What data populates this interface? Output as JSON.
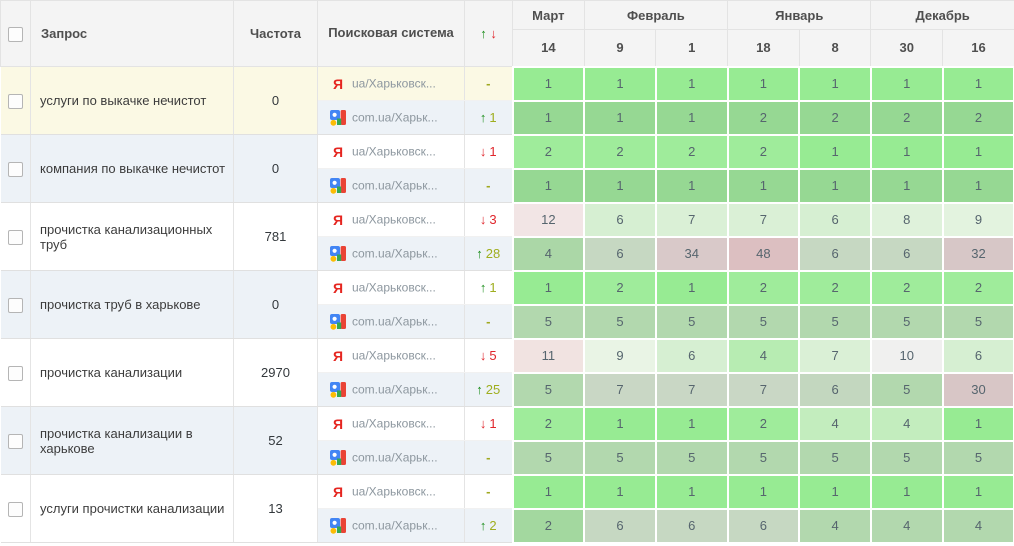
{
  "header": {
    "columns": {
      "query": "Запрос",
      "frequency": "Частота",
      "engine": "Поисковая система",
      "change_up": "↑",
      "change_down": "↓"
    },
    "months": [
      {
        "label": "Март",
        "span": 1
      },
      {
        "label": "Февраль",
        "span": 2
      },
      {
        "label": "Январь",
        "span": 2
      },
      {
        "label": "Декабрь",
        "span": 2
      }
    ],
    "days": [
      "14",
      "9",
      "1",
      "18",
      "8",
      "30",
      "16"
    ]
  },
  "colors": {
    "header_bg": "#f4f4f4",
    "highlight_yellow": "#fbf9e4",
    "zebra_blue": "#edf2f7",
    "white": "#ffffff",
    "up_arrow": "#1e8f1e",
    "up_number": "#9fae1e",
    "down": "#e0262c",
    "dash": "#9fa81e",
    "green_bright": "#97eb93",
    "green_muted": "#96d893"
  },
  "rows": [
    {
      "query": "услуги по выкачке нечистот",
      "frequency": "0",
      "bg": "#fbf9e4",
      "engines": [
        {
          "icon": "yandex-icon",
          "label": "ua/Харьковск...",
          "bg": "#fbf9e4",
          "change": {
            "dir": "flat",
            "value": "-"
          },
          "cells": [
            [
              "1",
              "#97eb93"
            ],
            [
              "1",
              "#97eb93"
            ],
            [
              "1",
              "#97eb93"
            ],
            [
              "1",
              "#97eb93"
            ],
            [
              "1",
              "#97eb93"
            ],
            [
              "1",
              "#97eb93"
            ],
            [
              "1",
              "#97eb93"
            ]
          ]
        },
        {
          "icon": "google-icon",
          "label": "com.ua/Харьк...",
          "bg": "#edf2f7",
          "change": {
            "dir": "up",
            "value": "1"
          },
          "cells": [
            [
              "1",
              "#96d893"
            ],
            [
              "1",
              "#96d893"
            ],
            [
              "1",
              "#96d893"
            ],
            [
              "2",
              "#96d893"
            ],
            [
              "2",
              "#96d893"
            ],
            [
              "2",
              "#96d893"
            ],
            [
              "2",
              "#96d893"
            ]
          ]
        }
      ]
    },
    {
      "query": "компания по выкачке нечистот",
      "frequency": "0",
      "bg": "#edf2f7",
      "engines": [
        {
          "icon": "yandex-icon",
          "label": "ua/Харьковск...",
          "bg": "#ffffff",
          "change": {
            "dir": "down",
            "value": "1"
          },
          "cells": [
            [
              "2",
              "#9fec9b"
            ],
            [
              "2",
              "#9fec9b"
            ],
            [
              "2",
              "#9fec9b"
            ],
            [
              "2",
              "#9fec9b"
            ],
            [
              "1",
              "#97eb93"
            ],
            [
              "1",
              "#97eb93"
            ],
            [
              "1",
              "#97eb93"
            ]
          ]
        },
        {
          "icon": "google-icon",
          "label": "com.ua/Харьк...",
          "bg": "#edf2f7",
          "change": {
            "dir": "flat",
            "value": "-"
          },
          "cells": [
            [
              "1",
              "#96d893"
            ],
            [
              "1",
              "#96d893"
            ],
            [
              "1",
              "#96d893"
            ],
            [
              "1",
              "#96d893"
            ],
            [
              "1",
              "#96d893"
            ],
            [
              "1",
              "#96d893"
            ],
            [
              "1",
              "#96d893"
            ]
          ]
        }
      ]
    },
    {
      "query": "прочистка канализационных труб",
      "frequency": "781",
      "bg": "#ffffff",
      "engines": [
        {
          "icon": "yandex-icon",
          "label": "ua/Харьковск...",
          "bg": "#ffffff",
          "change": {
            "dir": "down",
            "value": "3"
          },
          "cells": [
            [
              "12",
              "#f2e5e5"
            ],
            [
              "6",
              "#d6efd2"
            ],
            [
              "7",
              "#daf0d6"
            ],
            [
              "7",
              "#daf0d6"
            ],
            [
              "6",
              "#d6efd2"
            ],
            [
              "8",
              "#dff2db"
            ],
            [
              "9",
              "#e3f3df"
            ]
          ]
        },
        {
          "icon": "google-icon",
          "label": "com.ua/Харьк...",
          "bg": "#edf2f7",
          "change": {
            "dir": "up",
            "value": "28"
          },
          "cells": [
            [
              "4",
              "#abd7a7"
            ],
            [
              "6",
              "#c6d8c2"
            ],
            [
              "34",
              "#d9c9c9"
            ],
            [
              "48",
              "#dcbfc1"
            ],
            [
              "6",
              "#c6d8c2"
            ],
            [
              "6",
              "#c6d8c2"
            ],
            [
              "32",
              "#d7c7c7"
            ]
          ]
        }
      ]
    },
    {
      "query": "прочистка труб в харькове",
      "frequency": "0",
      "bg": "#edf2f7",
      "engines": [
        {
          "icon": "yandex-icon",
          "label": "ua/Харьковск...",
          "bg": "#ffffff",
          "change": {
            "dir": "up",
            "value": "1"
          },
          "cells": [
            [
              "1",
              "#97eb93"
            ],
            [
              "2",
              "#9fec9b"
            ],
            [
              "1",
              "#97eb93"
            ],
            [
              "2",
              "#9fec9b"
            ],
            [
              "2",
              "#9fec9b"
            ],
            [
              "2",
              "#9fec9b"
            ],
            [
              "2",
              "#9fec9b"
            ]
          ]
        },
        {
          "icon": "google-icon",
          "label": "com.ua/Харьк...",
          "bg": "#edf2f7",
          "change": {
            "dir": "flat",
            "value": "-"
          },
          "cells": [
            [
              "5",
              "#b2d8ae"
            ],
            [
              "5",
              "#b2d8ae"
            ],
            [
              "5",
              "#b2d8ae"
            ],
            [
              "5",
              "#b2d8ae"
            ],
            [
              "5",
              "#b2d8ae"
            ],
            [
              "5",
              "#b2d8ae"
            ],
            [
              "5",
              "#b2d8ae"
            ]
          ]
        }
      ]
    },
    {
      "query": "прочистка канализации",
      "frequency": "2970",
      "bg": "#ffffff",
      "engines": [
        {
          "icon": "yandex-icon",
          "label": "ua/Харьковск...",
          "bg": "#ffffff",
          "change": {
            "dir": "down",
            "value": "5"
          },
          "cells": [
            [
              "11",
              "#f1e3e1"
            ],
            [
              "9",
              "#e9f4e5"
            ],
            [
              "6",
              "#d6efd2"
            ],
            [
              "4",
              "#b7ecb2"
            ],
            [
              "7",
              "#daf0d6"
            ],
            [
              "10",
              "#f0f0ef"
            ],
            [
              "6",
              "#d6efd2"
            ]
          ]
        },
        {
          "icon": "google-icon",
          "label": "com.ua/Харьк...",
          "bg": "#edf2f7",
          "change": {
            "dir": "up",
            "value": "25"
          },
          "cells": [
            [
              "5",
              "#b2d8ae"
            ],
            [
              "7",
              "#c9d7c5"
            ],
            [
              "7",
              "#c9d7c5"
            ],
            [
              "7",
              "#c9d7c5"
            ],
            [
              "6",
              "#c3d7bf"
            ],
            [
              "5",
              "#b2d8ae"
            ],
            [
              "30",
              "#d8c6c6"
            ]
          ]
        }
      ]
    },
    {
      "query": "прочистка канализации в харькове",
      "frequency": "52",
      "bg": "#edf2f7",
      "engines": [
        {
          "icon": "yandex-icon",
          "label": "ua/Харьковск...",
          "bg": "#ffffff",
          "change": {
            "dir": "down",
            "value": "1"
          },
          "cells": [
            [
              "2",
              "#9fec9b"
            ],
            [
              "1",
              "#97eb93"
            ],
            [
              "1",
              "#97eb93"
            ],
            [
              "2",
              "#9fec9b"
            ],
            [
              "4",
              "#c3edbe"
            ],
            [
              "4",
              "#c3edbe"
            ],
            [
              "1",
              "#97eb93"
            ]
          ]
        },
        {
          "icon": "google-icon",
          "label": "com.ua/Харьк...",
          "bg": "#edf2f7",
          "change": {
            "dir": "flat",
            "value": "-"
          },
          "cells": [
            [
              "5",
              "#b2d8ae"
            ],
            [
              "5",
              "#b2d8ae"
            ],
            [
              "5",
              "#b2d8ae"
            ],
            [
              "5",
              "#b2d8ae"
            ],
            [
              "5",
              "#b2d8ae"
            ],
            [
              "5",
              "#b2d8ae"
            ],
            [
              "5",
              "#b2d8ae"
            ]
          ]
        }
      ]
    },
    {
      "query": "услуги прочистки канализации",
      "frequency": "13",
      "bg": "#ffffff",
      "engines": [
        {
          "icon": "yandex-icon",
          "label": "ua/Харьковск...",
          "bg": "#ffffff",
          "change": {
            "dir": "flat",
            "value": "-"
          },
          "cells": [
            [
              "1",
              "#97eb93"
            ],
            [
              "1",
              "#97eb93"
            ],
            [
              "1",
              "#97eb93"
            ],
            [
              "1",
              "#97eb93"
            ],
            [
              "1",
              "#97eb93"
            ],
            [
              "1",
              "#97eb93"
            ],
            [
              "1",
              "#97eb93"
            ]
          ]
        },
        {
          "icon": "google-icon",
          "label": "com.ua/Харьк...",
          "bg": "#edf2f7",
          "change": {
            "dir": "up",
            "value": "2"
          },
          "cells": [
            [
              "2",
              "#a3d89f"
            ],
            [
              "6",
              "#c6d8c2"
            ],
            [
              "6",
              "#c6d8c2"
            ],
            [
              "6",
              "#c6d8c2"
            ],
            [
              "4",
              "#b2d8ae"
            ],
            [
              "4",
              "#b2d8ae"
            ],
            [
              "4",
              "#b2d8ae"
            ]
          ]
        }
      ]
    }
  ]
}
